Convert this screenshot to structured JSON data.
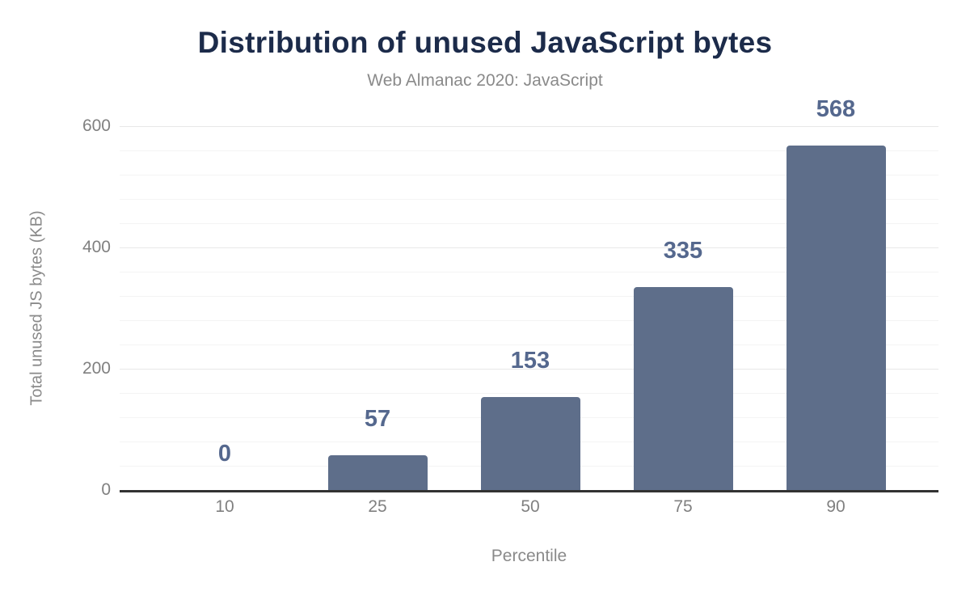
{
  "colors": {
    "background": "#ffffff",
    "title": "#1c2b4a",
    "subtitle": "#8a8a8a",
    "bar": "#5e6e8a",
    "value_label": "#55688e",
    "axis_text": "#808080",
    "axis_title_text": "#8a8a8a",
    "axis_line": "#323232",
    "grid_major": "#e8e8e8",
    "grid_minor": "#f4f4f4"
  },
  "chart_data": {
    "type": "bar",
    "title": "Distribution of unused JavaScript bytes",
    "subtitle": "Web Almanac 2020: JavaScript",
    "xlabel": "Percentile",
    "ylabel": "Total unused JS bytes (KB)",
    "categories": [
      "10",
      "25",
      "50",
      "75",
      "90"
    ],
    "values": [
      0,
      57,
      153,
      335,
      568
    ],
    "value_labels": [
      "0",
      "57",
      "153",
      "335",
      "568"
    ],
    "ylim": [
      0,
      600
    ],
    "yticks": [
      0,
      200,
      400,
      600
    ],
    "minor_grid_step": 40,
    "major_grid_step": 200,
    "grid": true,
    "legend": false
  }
}
